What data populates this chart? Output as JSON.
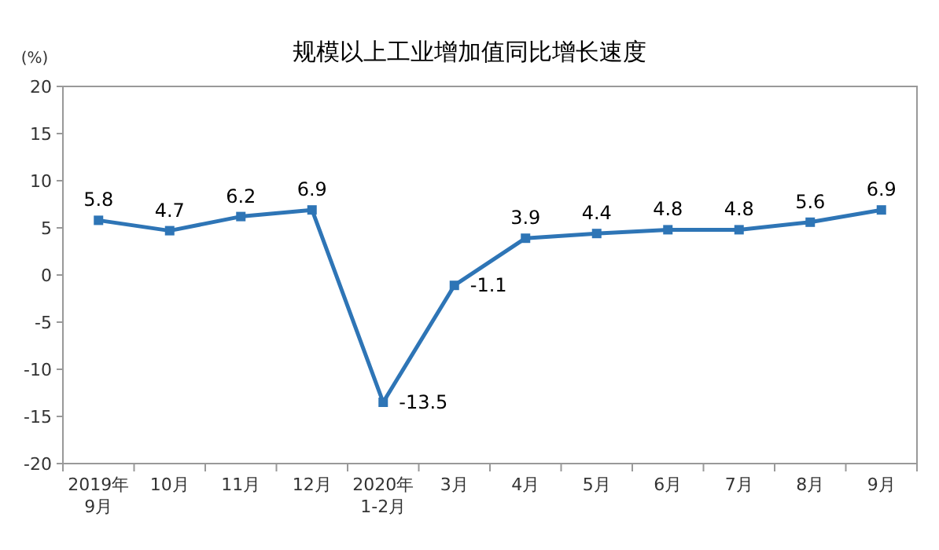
{
  "chart_data": {
    "type": "line",
    "title": "规模以上工业增加值同比增长速度",
    "ylabel": "(%)",
    "categories": [
      "2019年\n9月",
      "10月",
      "11月",
      "12月",
      "2020年\n1-2月",
      "3月",
      "4月",
      "5月",
      "6月",
      "7月",
      "8月",
      "9月"
    ],
    "values": [
      5.8,
      4.7,
      6.2,
      6.9,
      -13.5,
      -1.1,
      3.9,
      4.4,
      4.8,
      4.8,
      5.6,
      6.9
    ],
    "color": "#2e75b6",
    "marker": "square",
    "data_labels": true,
    "grid": false,
    "ylim": [
      -20,
      20
    ],
    "yticks": [
      -20,
      -15,
      -10,
      -5,
      0,
      5,
      10,
      15,
      20
    ]
  }
}
